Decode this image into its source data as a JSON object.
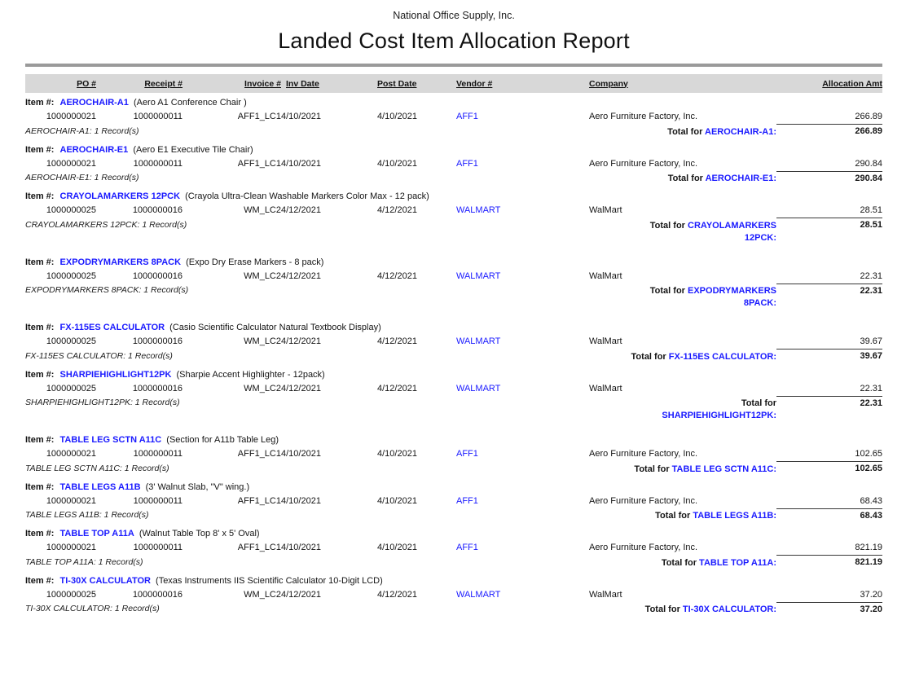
{
  "header": {
    "company": "National Office Supply, Inc.",
    "title": "Landed Cost Item Allocation Report"
  },
  "labels": {
    "item_prefix": "Item #:",
    "total_prefix": "Total for"
  },
  "columns": [
    "PO #",
    "Receipt #",
    "Invoice #",
    "Inv Date",
    "Post Date",
    "Vendor #",
    "Company",
    "Allocation Amt"
  ],
  "colors": {
    "link_blue": "#1a1aff",
    "header_bar_gray": "#d8d8d8",
    "rule_gray": "#9a9a9a"
  },
  "groups": [
    {
      "item_code": "AEROCHAIR-A1",
      "item_desc": "(Aero A1 Conference Chair )",
      "row": {
        "po": "1000000021",
        "receipt": "1000000011",
        "invoice": "AFF1_LC1",
        "inv_date": "4/10/2021",
        "post_date": "4/10/2021",
        "vendor": "AFF1",
        "company": "Aero Furniture Factory, Inc.",
        "amount": "266.89"
      },
      "record_note": "AEROCHAIR-A1: 1 Record(s)",
      "total_lines": [
        {
          "black": "Total for ",
          "blue": "AEROCHAIR-A1:"
        }
      ],
      "total_amount": "266.89",
      "extra_gap": false
    },
    {
      "item_code": "AEROCHAIR-E1",
      "item_desc": "(Aero E1 Executive Tile Chair)",
      "row": {
        "po": "1000000021",
        "receipt": "1000000011",
        "invoice": "AFF1_LC1",
        "inv_date": "4/10/2021",
        "post_date": "4/10/2021",
        "vendor": "AFF1",
        "company": "Aero Furniture Factory, Inc.",
        "amount": "290.84"
      },
      "record_note": "AEROCHAIR-E1: 1 Record(s)",
      "total_lines": [
        {
          "black": "Total for ",
          "blue": "AEROCHAIR-E1:"
        }
      ],
      "total_amount": "290.84",
      "extra_gap": false
    },
    {
      "item_code": "CRAYOLAMARKERS 12PCK",
      "item_desc": "(Crayola Ultra-Clean Washable Markers Color Max - 12 pack)",
      "row": {
        "po": "1000000025",
        "receipt": "1000000016",
        "invoice": "WM_LC2",
        "inv_date": "4/12/2021",
        "post_date": "4/12/2021",
        "vendor": "WALMART",
        "company": "WalMart",
        "amount": "28.51"
      },
      "record_note": "CRAYOLAMARKERS 12PCK: 1 Record(s)",
      "total_lines": [
        {
          "black": "Total for ",
          "blue": "CRAYOLAMARKERS"
        },
        {
          "black": "",
          "blue": "12PCK:"
        }
      ],
      "total_amount": "28.51",
      "extra_gap": true
    },
    {
      "item_code": "EXPODRYMARKERS 8PACK",
      "item_desc": "(Expo Dry Erase Markers - 8 pack)",
      "row": {
        "po": "1000000025",
        "receipt": "1000000016",
        "invoice": "WM_LC2",
        "inv_date": "4/12/2021",
        "post_date": "4/12/2021",
        "vendor": "WALMART",
        "company": "WalMart",
        "amount": "22.31"
      },
      "record_note": "EXPODRYMARKERS 8PACK: 1 Record(s)",
      "total_lines": [
        {
          "black": "Total for ",
          "blue": "EXPODRYMARKERS"
        },
        {
          "black": "",
          "blue": "8PACK:"
        }
      ],
      "total_amount": "22.31",
      "extra_gap": true
    },
    {
      "item_code": "FX-115ES CALCULATOR",
      "item_desc": "(Casio Scientific Calculator Natural Textbook Display)",
      "row": {
        "po": "1000000025",
        "receipt": "1000000016",
        "invoice": "WM_LC2",
        "inv_date": "4/12/2021",
        "post_date": "4/12/2021",
        "vendor": "WALMART",
        "company": "WalMart",
        "amount": "39.67"
      },
      "record_note": "FX-115ES CALCULATOR: 1 Record(s)",
      "total_lines": [
        {
          "black": "Total for ",
          "blue": "FX-115ES CALCULATOR:"
        }
      ],
      "total_amount": "39.67",
      "extra_gap": false
    },
    {
      "item_code": "SHARPIEHIGHLIGHT12PK",
      "item_desc": "(Sharpie Accent Highlighter - 12pack)",
      "row": {
        "po": "1000000025",
        "receipt": "1000000016",
        "invoice": "WM_LC2",
        "inv_date": "4/12/2021",
        "post_date": "4/12/2021",
        "vendor": "WALMART",
        "company": "WalMart",
        "amount": "22.31"
      },
      "record_note": "SHARPIEHIGHLIGHT12PK: 1 Record(s)",
      "total_lines": [
        {
          "black": "Total for ",
          "blue": ""
        },
        {
          "black": "",
          "blue": "SHARPIEHIGHLIGHT12PK:"
        }
      ],
      "total_amount": "22.31",
      "extra_gap": true
    },
    {
      "item_code": "TABLE LEG SCTN A11C",
      "item_desc": "(Section for A11b Table Leg)",
      "row": {
        "po": "1000000021",
        "receipt": "1000000011",
        "invoice": "AFF1_LC1",
        "inv_date": "4/10/2021",
        "post_date": "4/10/2021",
        "vendor": "AFF1",
        "company": "Aero Furniture Factory, Inc.",
        "amount": "102.65"
      },
      "record_note": "TABLE LEG SCTN A11C: 1 Record(s)",
      "total_lines": [
        {
          "black": "Total for ",
          "blue": "TABLE LEG SCTN A11C:"
        }
      ],
      "total_amount": "102.65",
      "extra_gap": false
    },
    {
      "item_code": "TABLE LEGS A11B",
      "item_desc": "(3' Walnut Slab, \"V\" wing.)",
      "row": {
        "po": "1000000021",
        "receipt": "1000000011",
        "invoice": "AFF1_LC1",
        "inv_date": "4/10/2021",
        "post_date": "4/10/2021",
        "vendor": "AFF1",
        "company": "Aero Furniture Factory, Inc.",
        "amount": "68.43"
      },
      "record_note": "TABLE LEGS A11B: 1 Record(s)",
      "total_lines": [
        {
          "black": "Total for ",
          "blue": "TABLE LEGS A11B:"
        }
      ],
      "total_amount": "68.43",
      "extra_gap": false
    },
    {
      "item_code": "TABLE TOP A11A",
      "item_desc": "(Walnut Table Top 8' x 5' Oval)",
      "row": {
        "po": "1000000021",
        "receipt": "1000000011",
        "invoice": "AFF1_LC1",
        "inv_date": "4/10/2021",
        "post_date": "4/10/2021",
        "vendor": "AFF1",
        "company": "Aero Furniture Factory, Inc.",
        "amount": "821.19"
      },
      "record_note": "TABLE TOP A11A: 1 Record(s)",
      "total_lines": [
        {
          "black": "Total for ",
          "blue": "TABLE TOP A11A:"
        }
      ],
      "total_amount": "821.19",
      "extra_gap": false
    },
    {
      "item_code": "TI-30X CALCULATOR",
      "item_desc": "(Texas Instruments IIS Scientific Calculator 10-Digit LCD)",
      "row": {
        "po": "1000000025",
        "receipt": "1000000016",
        "invoice": "WM_LC2",
        "inv_date": "4/12/2021",
        "post_date": "4/12/2021",
        "vendor": "WALMART",
        "company": "WalMart",
        "amount": "37.20"
      },
      "record_note": "TI-30X CALCULATOR: 1 Record(s)",
      "total_lines": [
        {
          "black": "Total for ",
          "blue": "TI-30X CALCULATOR:"
        }
      ],
      "total_amount": "37.20",
      "extra_gap": false
    }
  ]
}
